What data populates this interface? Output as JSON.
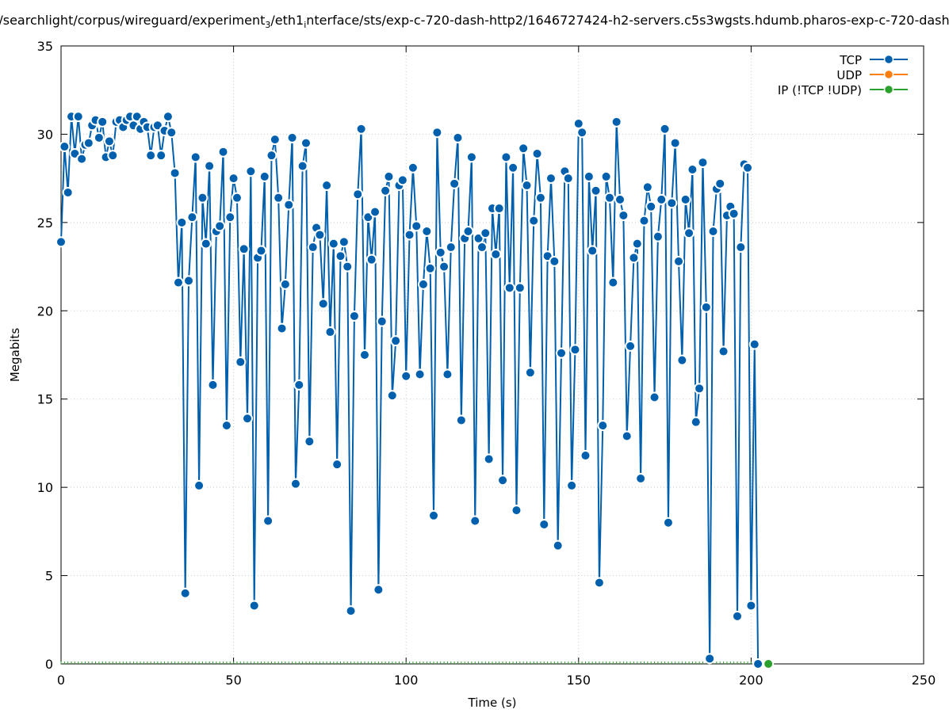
{
  "chart_data": {
    "type": "line",
    "title_parts": [
      {
        "text": "/searchlight/corpus/wireguard/experiment",
        "sub": false
      },
      {
        "text": "3",
        "sub": true
      },
      {
        "text": "/eth1",
        "sub": false
      },
      {
        "text": "i",
        "sub": true
      },
      {
        "text": "nterface/sts/exp-c-720-dash-http2/1646727424-h2-servers.c5s3wgsts.hdumb.pharos-exp-c-720-dash",
        "sub": false
      }
    ],
    "xlabel": "Time (s)",
    "ylabel": "Megabits",
    "xlim": [
      0,
      250
    ],
    "ylim": [
      0,
      35
    ],
    "xticks": [
      0,
      50,
      100,
      150,
      200,
      250
    ],
    "yticks": [
      0,
      5,
      10,
      15,
      20,
      25,
      30,
      35
    ],
    "grid": true,
    "legend_position": "top-right",
    "series": [
      {
        "name": "TCP",
        "color": "#0060ad",
        "x_start": 0,
        "x_step": 1,
        "values": [
          23.9,
          29.3,
          26.7,
          31,
          28.9,
          31,
          28.6,
          29.4,
          29.5,
          30.5,
          30.8,
          29.8,
          30.7,
          28.7,
          29.6,
          28.8,
          30.7,
          30.8,
          30.4,
          30.8,
          31,
          30.5,
          31,
          30.3,
          30.7,
          30.4,
          28.8,
          30.4,
          30.5,
          28.8,
          30.2,
          31,
          30.1,
          27.8,
          21.6,
          25,
          4,
          21.7,
          25.3,
          28.7,
          10.1,
          26.4,
          23.8,
          28.2,
          15.8,
          24.5,
          24.8,
          29,
          13.5,
          25.3,
          27.5,
          26.4,
          17.1,
          23.5,
          13.9,
          27.9,
          3.3,
          23,
          23.4,
          27.6,
          8.1,
          28.8,
          29.7,
          26.4,
          19,
          21.5,
          26,
          29.8,
          10.2,
          15.8,
          28.2,
          29.5,
          12.6,
          23.6,
          24.7,
          24.3,
          20.4,
          27.1,
          18.8,
          23.8,
          11.3,
          23.1,
          23.9,
          22.5,
          3,
          19.7,
          26.6,
          30.3,
          17.5,
          25.3,
          22.9,
          25.6,
          4.2,
          19.4,
          26.8,
          27.6,
          15.2,
          18.3,
          27.1,
          27.4,
          16.3,
          24.3,
          28.1,
          24.8,
          16.4,
          21.5,
          24.5,
          22.4,
          8.4,
          30.1,
          23.3,
          22.5,
          16.4,
          23.6,
          27.2,
          29.8,
          13.8,
          24.1,
          24.5,
          28.7,
          8.1,
          24.1,
          23.6,
          24.4,
          11.6,
          25.8,
          23.2,
          25.8,
          10.4,
          28.7,
          21.3,
          28.1,
          8.7,
          21.3,
          29.2,
          27.1,
          16.5,
          25.1,
          28.9,
          26.4,
          7.9,
          23.1,
          27.5,
          22.8,
          6.7,
          17.6,
          27.9,
          27.5,
          10.1,
          17.8,
          30.6,
          30.1,
          11.8,
          27.6,
          23.4,
          26.8,
          4.6,
          13.5,
          27.6,
          26.4,
          21.6,
          30.7,
          26.3,
          25.4,
          12.9,
          18,
          23,
          23.8,
          10.5,
          25.1,
          27,
          25.9,
          15.1,
          24.2,
          26.3,
          30.3,
          8,
          26.1,
          29.5,
          22.8,
          17.2,
          26.3,
          24.4,
          28,
          13.7,
          15.6,
          28.4,
          20.2,
          0.3,
          24.5,
          26.9,
          27.2,
          17.7,
          25.4,
          25.9,
          25.5,
          2.7,
          23.6,
          28.3,
          28.1,
          3.3,
          18.1,
          0
        ]
      },
      {
        "name": "UDP",
        "color": "#ff7f0e",
        "x_start": 0,
        "x_step": 1,
        "values": []
      },
      {
        "name": "IP (!TCP  !UDP)",
        "color": "#2ca02c",
        "x": [
          205
        ],
        "values": [
          0
        ]
      }
    ]
  }
}
